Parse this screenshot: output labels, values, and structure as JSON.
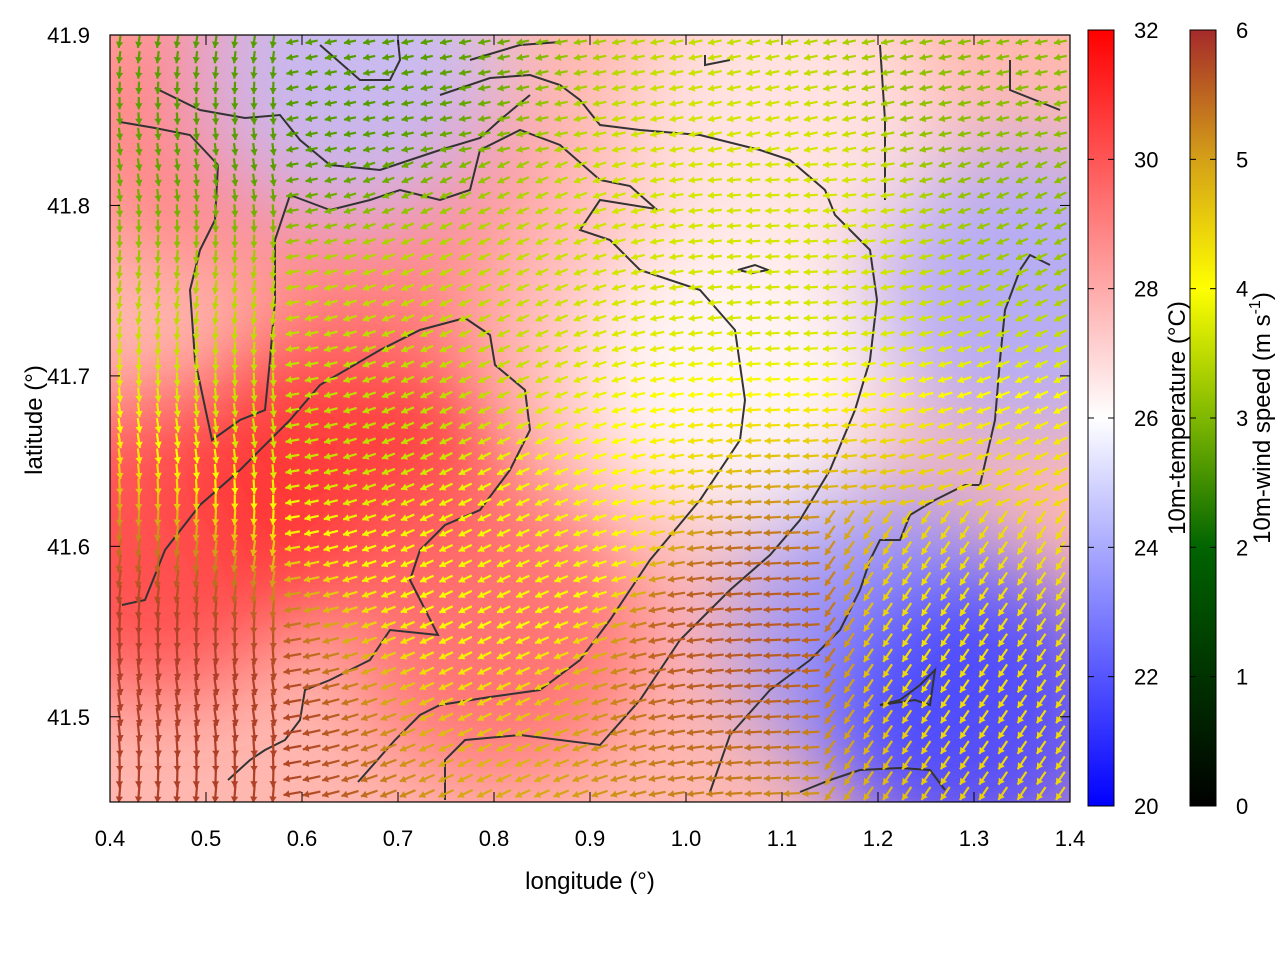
{
  "chart_data": {
    "type": "heatmap",
    "title": "",
    "xlabel": "longitude (°)",
    "ylabel": "latitude (°)",
    "xlim": [
      0.4,
      1.4
    ],
    "ylim": [
      41.45,
      41.9
    ],
    "xticks": [
      "0.4",
      "0.5",
      "0.6",
      "0.7",
      "0.8",
      "0.9",
      "1.0",
      "1.1",
      "1.2",
      "1.3",
      "1.4"
    ],
    "yticks": [
      "41.5",
      "41.6",
      "41.7",
      "41.8",
      "41.9"
    ],
    "grid": false,
    "temperature_colorbar": {
      "label": "10m-temperature (°C)",
      "range": [
        20,
        32
      ],
      "ticks": [
        "20",
        "22",
        "24",
        "26",
        "28",
        "30",
        "32"
      ],
      "colors": [
        "#0000ff",
        "#ffffff",
        "#ff0000"
      ]
    },
    "wind_colorbar": {
      "label_main": "10m-wind speed (m s",
      "label_sup": "-1",
      "label_end": ")",
      "range": [
        0,
        6
      ],
      "ticks": [
        "0",
        "1",
        "2",
        "3",
        "4",
        "5",
        "6"
      ],
      "colors": [
        "#000000",
        "#006400",
        "#7fb800",
        "#ffff00",
        "#d4a017",
        "#a52a2a"
      ]
    },
    "temperature_field_samples": [
      {
        "lon": 0.45,
        "lat": 41.6,
        "t": 30.5
      },
      {
        "lon": 0.5,
        "lat": 41.85,
        "t": 29.0
      },
      {
        "lon": 0.65,
        "lat": 41.65,
        "t": 31.0
      },
      {
        "lon": 0.7,
        "lat": 41.8,
        "t": 29.0
      },
      {
        "lon": 0.8,
        "lat": 41.55,
        "t": 29.5
      },
      {
        "lon": 0.95,
        "lat": 41.75,
        "t": 27.5
      },
      {
        "lon": 1.05,
        "lat": 41.7,
        "t": 26.0
      },
      {
        "lon": 1.1,
        "lat": 41.85,
        "t": 26.5
      },
      {
        "lon": 1.2,
        "lat": 41.55,
        "t": 23.5
      },
      {
        "lon": 1.3,
        "lat": 41.5,
        "t": 21.5
      },
      {
        "lon": 1.35,
        "lat": 41.75,
        "t": 24.0
      },
      {
        "lon": 0.65,
        "lat": 41.88,
        "t": 24.5
      }
    ],
    "wind_speed_samples": [
      {
        "lon": 0.45,
        "lat": 41.5,
        "speed": 5.8
      },
      {
        "lon": 0.6,
        "lat": 41.88,
        "speed": 2.0
      },
      {
        "lon": 0.7,
        "lat": 41.7,
        "speed": 3.0
      },
      {
        "lon": 0.85,
        "lat": 41.6,
        "speed": 3.5
      },
      {
        "lon": 1.05,
        "lat": 41.55,
        "speed": 5.5
      },
      {
        "lon": 1.1,
        "lat": 41.8,
        "speed": 3.2
      },
      {
        "lon": 1.3,
        "lat": 41.55,
        "speed": 4.0
      },
      {
        "lon": 1.35,
        "lat": 41.85,
        "speed": 2.5
      }
    ]
  }
}
